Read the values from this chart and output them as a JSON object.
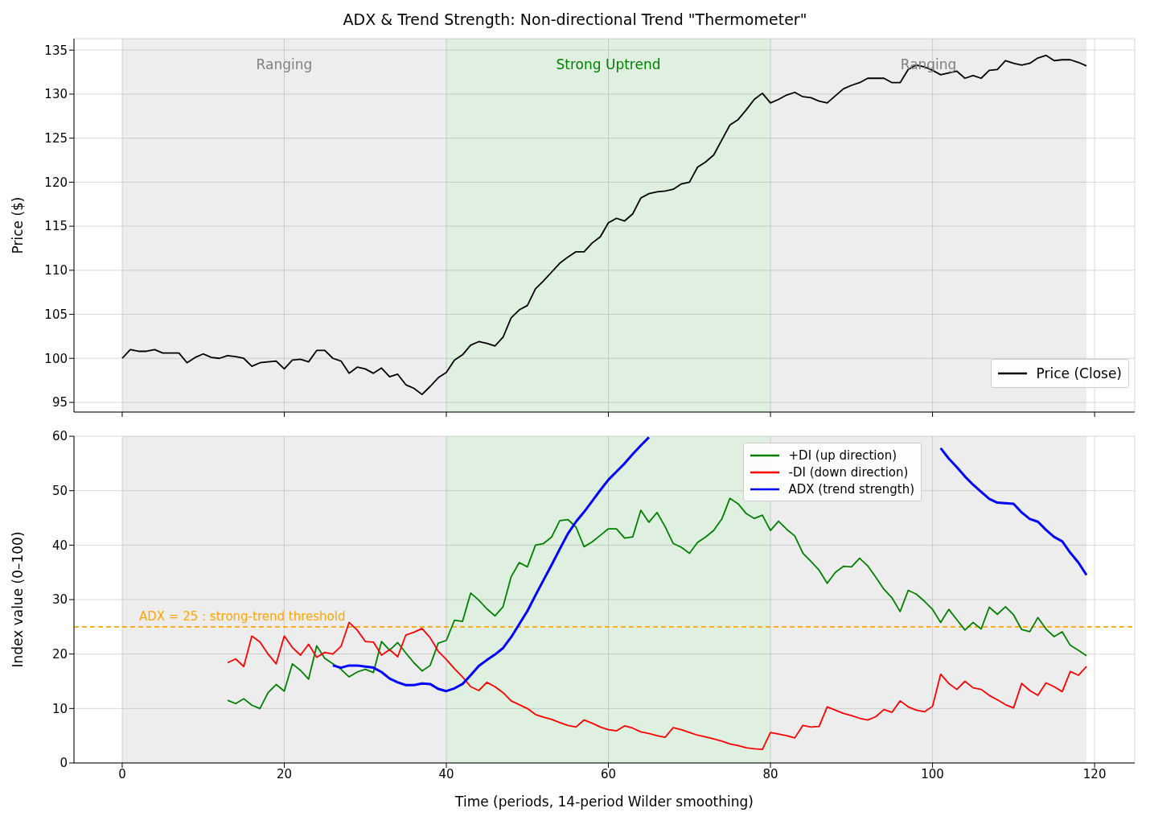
{
  "chart_data": [
    {
      "type": "line",
      "title": "ADX & Trend Strength: Non-directional Trend \"Thermometer\"",
      "ylabel": "Price ($)",
      "x": [
        0,
        1,
        2,
        3,
        4,
        5,
        6,
        7,
        8,
        9,
        10,
        11,
        12,
        13,
        14,
        15,
        16,
        17,
        18,
        19,
        20,
        21,
        22,
        23,
        24,
        25,
        26,
        27,
        28,
        29,
        30,
        31,
        32,
        33,
        34,
        35,
        36,
        37,
        38,
        39,
        40,
        41,
        42,
        43,
        44,
        45,
        46,
        47,
        48,
        49,
        50,
        51,
        52,
        53,
        54,
        55,
        56,
        57,
        58,
        59,
        60,
        61,
        62,
        63,
        64,
        65,
        66,
        67,
        68,
        69,
        70,
        71,
        72,
        73,
        74,
        75,
        76,
        77,
        78,
        79,
        80,
        81,
        82,
        83,
        84,
        85,
        86,
        87,
        88,
        89,
        90,
        91,
        92,
        93,
        94,
        95,
        96,
        97,
        98,
        99,
        100,
        101,
        102,
        103,
        104,
        105,
        106,
        107,
        108,
        109,
        110,
        111,
        112,
        113,
        114,
        115,
        116,
        117,
        118,
        119
      ],
      "series": [
        {
          "name": "Price (Close)",
          "color": "#000000",
          "values": [
            100,
            101,
            100.8,
            100.8,
            101,
            100.6,
            100.6,
            100.6,
            99.5,
            100.1,
            100.5,
            100.1,
            100,
            100.3,
            100.2,
            100,
            99.1,
            99.5,
            99.6,
            99.7,
            98.8,
            99.8,
            99.9,
            99.6,
            100.9,
            100.9,
            100,
            99.7,
            98.3,
            99,
            98.8,
            98.3,
            98.9,
            97.9,
            98.2,
            97,
            96.6,
            95.9,
            96.8,
            97.8,
            98.4,
            99.8,
            100.4,
            101.5,
            101.9,
            101.7,
            101.4,
            102.4,
            104.6,
            105.5,
            106,
            107.9,
            108.8,
            109.8,
            110.8,
            111.5,
            112.1,
            112.1,
            113.1,
            113.8,
            115.4,
            115.9,
            115.6,
            116.4,
            118.2,
            118.7,
            118.9,
            119,
            119.2,
            119.8,
            120,
            121.7,
            122.3,
            123.1,
            124.8,
            126.5,
            127.1,
            128.2,
            129.4,
            130.1,
            129,
            129.4,
            129.9,
            130.2,
            129.7,
            129.6,
            129.2,
            129,
            129.8,
            130.6,
            131,
            131.3,
            131.8,
            131.8,
            131.8,
            131.3,
            131.3,
            132.8,
            133.3,
            133.1,
            132.7,
            132.2,
            132.4,
            132.6,
            131.8,
            132.1,
            131.8,
            132.7,
            132.8,
            133.8,
            133.5,
            133.3,
            133.5,
            134.1,
            134.4,
            133.8,
            133.9,
            133.9,
            133.6,
            133.2
          ]
        }
      ],
      "xlim": [
        -5.95,
        124.95
      ],
      "xticks": [
        0,
        20,
        40,
        60,
        80,
        100,
        120
      ],
      "ylim": [
        93.9,
        136.3
      ],
      "yticks": [
        95,
        100,
        105,
        110,
        115,
        120,
        125,
        130,
        135
      ],
      "tick_labels": "y",
      "grid": true,
      "legend": "bottom right",
      "bands": [
        {
          "axis": "x",
          "from": 0,
          "to": 40,
          "label": "Ranging",
          "color": "#808080"
        },
        {
          "axis": "x",
          "from": 40,
          "to": 80,
          "label": "Strong Uptrend",
          "color": "#008000"
        },
        {
          "axis": "x",
          "from": 80,
          "to": 119,
          "label": "Ranging",
          "color": "#808080"
        }
      ]
    },
    {
      "type": "line",
      "xlabel": "Time (periods, 14-period Wilder smoothing)",
      "ylabel": "Index value (0–100)",
      "x": [
        13,
        14,
        15,
        16,
        17,
        18,
        19,
        20,
        21,
        22,
        23,
        24,
        25,
        26,
        27,
        28,
        29,
        30,
        31,
        32,
        33,
        34,
        35,
        36,
        37,
        38,
        39,
        40,
        41,
        42,
        43,
        44,
        45,
        46,
        47,
        48,
        49,
        50,
        51,
        52,
        53,
        54,
        55,
        56,
        57,
        58,
        59,
        60,
        61,
        62,
        63,
        64,
        65,
        66,
        67,
        68,
        69,
        70,
        71,
        72,
        73,
        74,
        75,
        76,
        77,
        78,
        79,
        80,
        81,
        82,
        83,
        84,
        85,
        86,
        87,
        88,
        89,
        90,
        91,
        92,
        93,
        94,
        95,
        96,
        97,
        98,
        99,
        100,
        101,
        102,
        103,
        104,
        105,
        106,
        107,
        108,
        109,
        110,
        111,
        112,
        113,
        114,
        115,
        116,
        117,
        118,
        119
      ],
      "series": [
        {
          "name": "+DI (up direction)",
          "color": "#008000",
          "values": [
            11.5,
            10.9,
            11.8,
            10.6,
            10,
            12.9,
            14.4,
            13.2,
            18.2,
            17,
            15.4,
            21.5,
            19.2,
            18.2,
            17.2,
            15.8,
            16.7,
            17.2,
            16.6,
            22.3,
            20.7,
            22.1,
            20.2,
            18.4,
            16.9,
            17.9,
            22,
            22.5,
            26.2,
            26,
            31.2,
            29.9,
            28.3,
            27,
            28.7,
            34.2,
            36.8,
            36,
            40,
            40.3,
            41.5,
            44.5,
            44.7,
            43.3,
            39.7,
            40.6,
            41.8,
            43,
            43,
            41.3,
            41.5,
            46.4,
            44.2,
            46,
            43.4,
            40.3,
            39.6,
            38.5,
            40.5,
            41.5,
            42.7,
            44.8,
            48.6,
            47.6,
            45.8,
            44.9,
            45.5,
            42.7,
            44.4,
            42.9,
            41.7,
            38.5,
            37,
            35.4,
            33,
            35,
            36.1,
            36,
            37.6,
            36.2,
            34.1,
            31.9,
            30.3,
            27.8,
            31.7,
            31,
            29.7,
            28.2,
            25.8,
            28.2,
            26.3,
            24.4,
            25.8,
            24.6,
            28.6,
            27.3,
            28.7,
            27.2,
            24.5,
            24.1,
            26.7,
            24.6,
            23.2,
            24.1,
            21.6,
            20.7,
            19.7
          ]
        },
        {
          "name": "-DI (down direction)",
          "color": "#ff0000",
          "values": [
            18.4,
            19.1,
            17.7,
            23.3,
            22.2,
            20,
            18.2,
            23.3,
            21.2,
            19.8,
            21.8,
            19.4,
            20.3,
            20,
            21.4,
            25.8,
            24.4,
            22.3,
            22.2,
            19.8,
            20.8,
            19.5,
            23.5,
            24,
            24.7,
            23,
            20.5,
            19,
            17.3,
            15.8,
            14,
            13.3,
            14.8,
            14,
            12.9,
            11.4,
            10.7,
            10,
            8.9,
            8.4,
            8,
            7.4,
            6.9,
            6.6,
            7.9,
            7.3,
            6.6,
            6.1,
            5.9,
            6.8,
            6.4,
            5.7,
            5.4,
            5,
            4.7,
            6.5,
            6.1,
            5.6,
            5.1,
            4.8,
            4.4,
            4,
            3.5,
            3.2,
            2.8,
            2.6,
            2.5,
            5.6,
            5.3,
            5,
            4.6,
            6.9,
            6.6,
            6.7,
            10.3,
            9.7,
            9.1,
            8.7,
            8.2,
            7.9,
            8.5,
            9.8,
            9.3,
            11.4,
            10.3,
            9.7,
            9.4,
            10.4,
            16.3,
            14.6,
            13.5,
            15,
            13.8,
            13.5,
            12.4,
            11.6,
            10.7,
            10.1,
            14.6,
            13.3,
            12.4,
            14.7,
            14,
            13.1,
            16.8,
            16.1,
            17.7
          ]
        },
        {
          "name": "ADX (trend strength)",
          "color": "#0000ff",
          "values": [
            null,
            null,
            null,
            null,
            null,
            null,
            null,
            null,
            null,
            null,
            null,
            null,
            null,
            17.9,
            17.5,
            17.9,
            17.9,
            17.7,
            17.5,
            16.7,
            15.5,
            14.8,
            14.3,
            14.3,
            14.6,
            14.5,
            13.6,
            13.2,
            13.7,
            14.5,
            16.1,
            17.8,
            18.9,
            19.9,
            21.1,
            23.1,
            25.5,
            27.9,
            30.8,
            33.6,
            36.4,
            39.3,
            42.1,
            44.3,
            46.1,
            48.1,
            50.1,
            52,
            53.5,
            55,
            56.7,
            58.3,
            59.8,
            null,
            null,
            null,
            null,
            null,
            null,
            null,
            null,
            null,
            null,
            null,
            null,
            null,
            null,
            null,
            null,
            null,
            null,
            null,
            null,
            null,
            null,
            null,
            null,
            null,
            null,
            null,
            null,
            null,
            null,
            null,
            null,
            null,
            null,
            null,
            57.8,
            55.9,
            54.3,
            52.6,
            51.1,
            49.8,
            48.5,
            47.8,
            47.7,
            47.6,
            46,
            44.8,
            44.3,
            42.8,
            41.5,
            40.7,
            38.6,
            36.8,
            34.5
          ]
        }
      ],
      "xlim": [
        -5.95,
        124.95
      ],
      "xticks": [
        0,
        20,
        40,
        60,
        80,
        100,
        120
      ],
      "ylim": [
        0,
        60
      ],
      "yticks": [
        0,
        10,
        20,
        30,
        40,
        50,
        60
      ],
      "grid": true,
      "legend": "top right",
      "ref_lines": [
        {
          "axis": "y",
          "value": 25,
          "label": "ADX = 25 : strong-trend threshold",
          "color": "#ffa500",
          "line_style": "dashed"
        }
      ],
      "bands": [
        {
          "axis": "x",
          "from": 0,
          "to": 40,
          "color": "#808080"
        },
        {
          "axis": "x",
          "from": 40,
          "to": 80,
          "color": "#008000"
        },
        {
          "axis": "x",
          "from": 80,
          "to": 119,
          "color": "#808080"
        }
      ]
    }
  ]
}
